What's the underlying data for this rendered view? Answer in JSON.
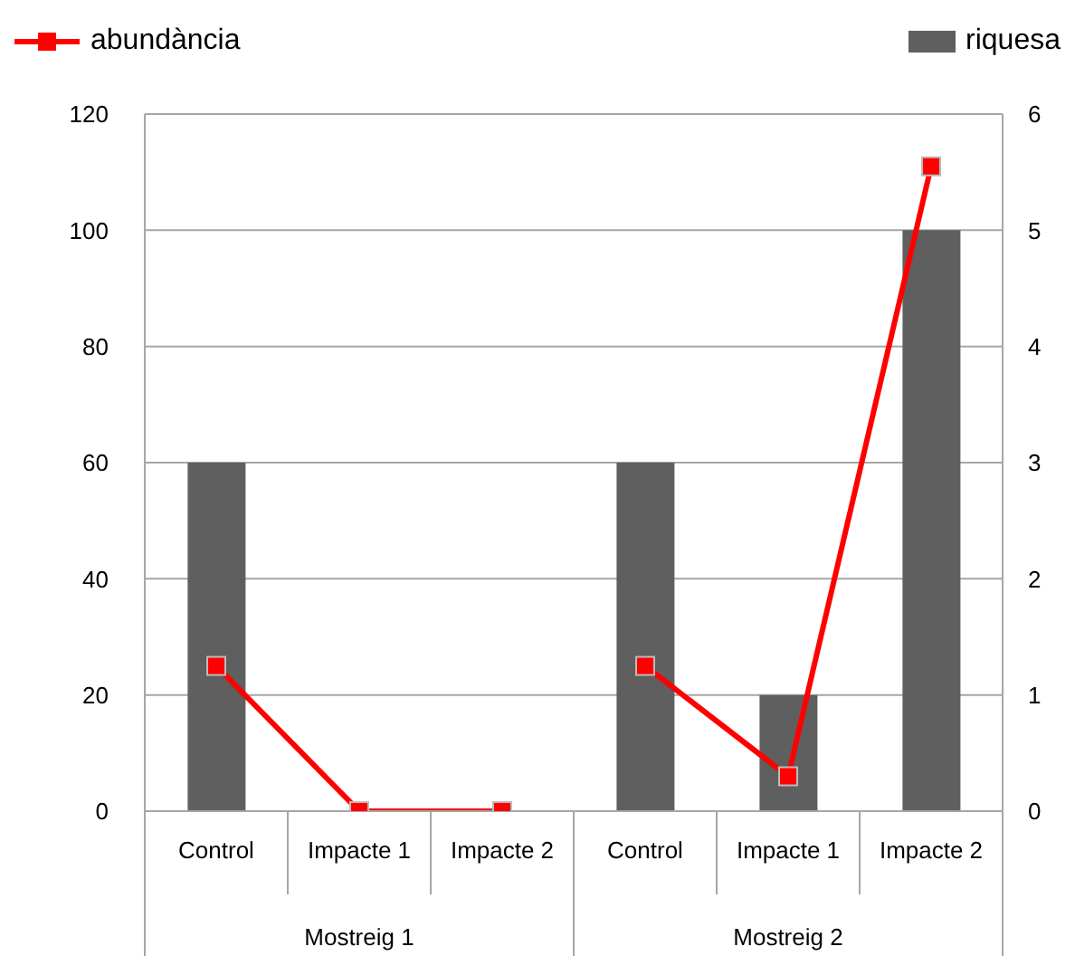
{
  "chart_data": {
    "type": "bar",
    "categories": [
      "Control",
      "Impacte 1",
      "Impacte 2",
      "Control",
      "Impacte 1",
      "Impacte 2"
    ],
    "annotations": [
      "Mostreig 1",
      "Mostreig 2"
    ],
    "series": [
      {
        "name": "abundància",
        "type": "line",
        "axis": "y",
        "color": "#ff0000",
        "values": [
          25,
          0,
          0,
          25,
          6,
          111
        ]
      },
      {
        "name": "riquesa",
        "axis": "y2",
        "color": "#5f5f5f",
        "values": [
          3,
          0,
          0,
          3,
          1,
          5
        ]
      }
    ],
    "ylim": [
      0,
      120
    ],
    "yticks": [
      0,
      20,
      40,
      60,
      80,
      100,
      120
    ],
    "y2lim": [
      0,
      6
    ],
    "y2ticks": [
      0,
      1,
      2,
      3,
      4,
      5,
      6
    ],
    "grid": "y",
    "legend": "top",
    "marker": "square",
    "line_style": "solid"
  }
}
